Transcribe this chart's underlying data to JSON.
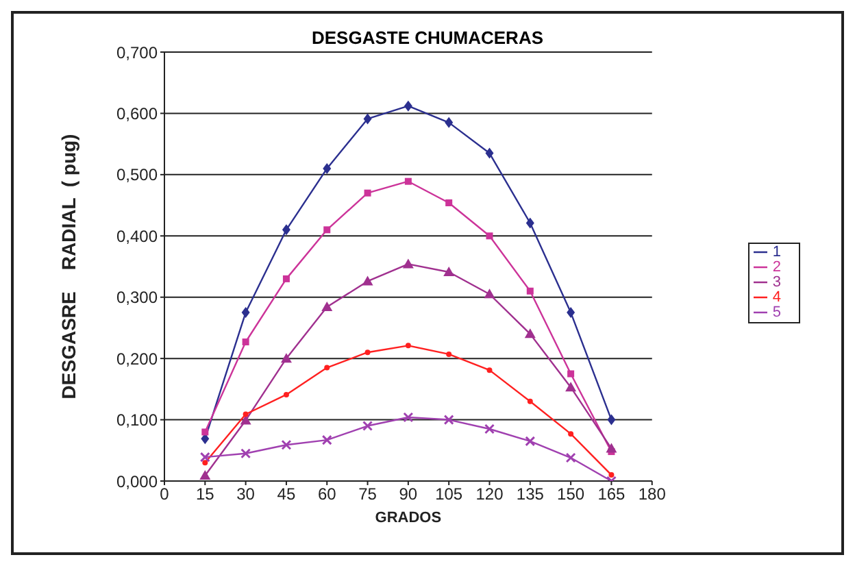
{
  "chart_data": {
    "type": "line",
    "title": "DESGASTE CHUMACERAS",
    "xlabel": "GRADOS",
    "ylabel": "DESGASRE    RADIAL  ( pug)",
    "x": [
      15,
      30,
      45,
      60,
      75,
      90,
      105,
      120,
      135,
      150,
      165
    ],
    "series": [
      {
        "name": "1",
        "color": "#2b2f8f",
        "marker": "diamond",
        "values": [
          0.069,
          0.275,
          0.41,
          0.51,
          0.591,
          0.612,
          0.585,
          0.535,
          0.421,
          0.275,
          0.1
        ]
      },
      {
        "name": "2",
        "color": "#cc3399",
        "marker": "square",
        "values": [
          0.08,
          0.227,
          0.33,
          0.41,
          0.47,
          0.489,
          0.454,
          0.4,
          0.31,
          0.175,
          0.048
        ]
      },
      {
        "name": "3",
        "color": "#a0308f",
        "marker": "triangle",
        "values": [
          0.009,
          0.099,
          0.2,
          0.284,
          0.326,
          0.354,
          0.341,
          0.305,
          0.24,
          0.153,
          0.053
        ]
      },
      {
        "name": "4",
        "color": "#ff2020",
        "marker": "circle",
        "values": [
          0.03,
          0.109,
          0.141,
          0.185,
          0.21,
          0.221,
          0.207,
          0.181,
          0.13,
          0.077,
          0.01
        ]
      },
      {
        "name": "5",
        "color": "#a040b0",
        "marker": "cross",
        "values": [
          0.039,
          0.045,
          0.059,
          0.067,
          0.09,
          0.104,
          0.1,
          0.085,
          0.065,
          0.038,
          0.0
        ]
      }
    ],
    "xlim": [
      0,
      180
    ],
    "xticks": [
      0,
      15,
      30,
      45,
      60,
      75,
      90,
      105,
      120,
      135,
      150,
      165,
      180
    ],
    "ylim": [
      0,
      0.7
    ],
    "yticks": [
      {
        "value": 0,
        "label": "0,000"
      },
      {
        "value": 0.1,
        "label": "0,100"
      },
      {
        "value": 0.2,
        "label": "0,200"
      },
      {
        "value": 0.3,
        "label": "0,300"
      },
      {
        "value": 0.4,
        "label": "0,400"
      },
      {
        "value": 0.5,
        "label": "0,500"
      },
      {
        "value": 0.6,
        "label": "0,600"
      },
      {
        "value": 0.7,
        "label": "0,700"
      }
    ],
    "grid": "y",
    "legend": "right",
    "line_style": "solid"
  }
}
